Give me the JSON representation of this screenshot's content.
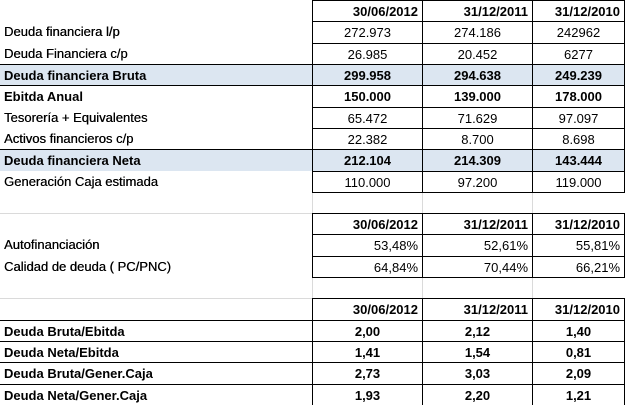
{
  "tables": [
    {
      "header": [
        "30/06/2012",
        "31/12/2011",
        "31/12/2010"
      ],
      "rows": [
        {
          "label": "Deuda financiera l/p",
          "values": [
            "272.973",
            "274.186",
            "242962"
          ]
        },
        {
          "label": "Deuda Financiera c/p",
          "values": [
            "26.985",
            "20.452",
            "6277"
          ]
        },
        {
          "label": "Deuda financiera Bruta",
          "values": [
            "299.958",
            "294.638",
            "249.239"
          ]
        },
        {
          "label": "Ebitda Anual",
          "values": [
            "150.000",
            "139.000",
            "178.000"
          ]
        },
        {
          "label": "Tesorería + Equivalentes",
          "values": [
            "65.472",
            "71.629",
            "97.097"
          ]
        },
        {
          "label": "Activos financieros c/p",
          "values": [
            "22.382",
            "8.700",
            "8.698"
          ]
        },
        {
          "label": "Deuda financiera Neta",
          "values": [
            "212.104",
            "214.309",
            "143.444"
          ]
        },
        {
          "label": "Generación Caja estimada",
          "values": [
            "110.000",
            "97.200",
            "119.000"
          ]
        }
      ]
    },
    {
      "header": [
        "30/06/2012",
        "31/12/2011",
        "31/12/2010"
      ],
      "rows": [
        {
          "label": "Autofinanciación",
          "values": [
            "53,48%",
            "52,61%",
            "55,81%"
          ]
        },
        {
          "label": "Calidad de deuda ( PC/PNC)",
          "values": [
            "64,84%",
            "70,44%",
            "66,21%"
          ]
        }
      ]
    },
    {
      "header": [
        "30/06/2012",
        "31/12/2011",
        "31/12/2010"
      ],
      "rows": [
        {
          "label": "Deuda Bruta/Ebitda",
          "values": [
            "2,00",
            "2,12",
            "1,40"
          ]
        },
        {
          "label": "Deuda Neta/Ebitda",
          "values": [
            "1,41",
            "1,54",
            "0,81"
          ]
        },
        {
          "label": "Deuda Bruta/Gener.Caja",
          "values": [
            "2,73",
            "3,03",
            "2,09"
          ]
        },
        {
          "label": "Deuda Neta/Gener.Caja",
          "values": [
            "1,93",
            "2,20",
            "1,21"
          ]
        }
      ]
    }
  ]
}
